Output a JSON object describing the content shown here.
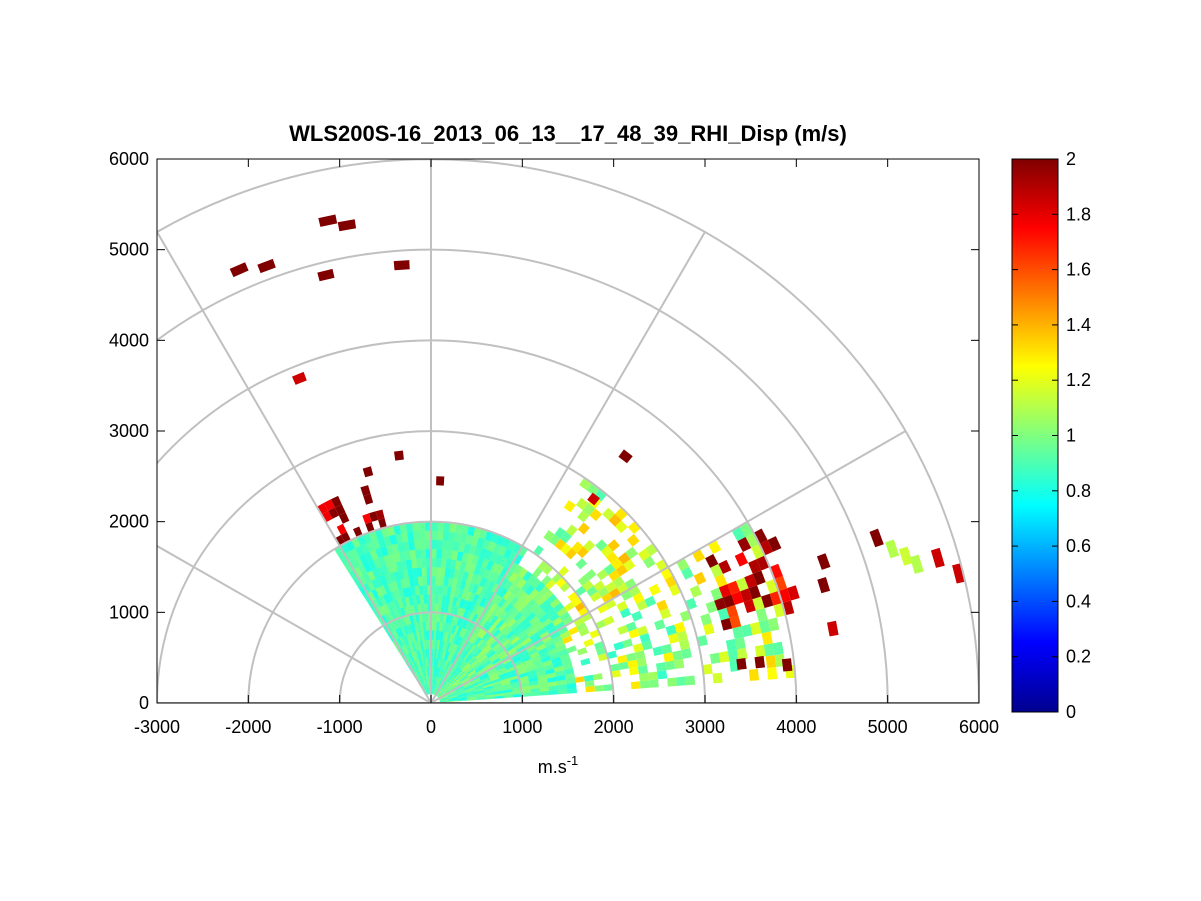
{
  "chart_data": {
    "type": "heatmap",
    "subtype": "polar-rhi-scan",
    "title": "WLS200S-16_2013_06_13__17_48_39_RHI_Disp (m/s)",
    "xlabel": {
      "base": "m.s",
      "superscript": "-1"
    },
    "ylabel": "",
    "xlim": [
      -3000,
      6000
    ],
    "ylim": [
      0,
      6000
    ],
    "x_ticks": [
      "-3000",
      "-2000",
      "-1000",
      "0",
      "1000",
      "2000",
      "3000",
      "4000",
      "5000",
      "6000"
    ],
    "y_ticks": [
      "0",
      "1000",
      "2000",
      "3000",
      "4000",
      "5000",
      "6000"
    ],
    "polar_grid": {
      "ring_ranges": [
        1000,
        2000,
        3000,
        4000,
        5000,
        6000
      ],
      "spoke_angles_deg": [
        0,
        30,
        60,
        90,
        120,
        150,
        180
      ],
      "color": "#c0c0c0"
    },
    "colorbar": {
      "colormap": "jet",
      "range": [
        0,
        2
      ],
      "ticks": [
        "0",
        "0.2",
        "0.4",
        "0.6",
        "0.8",
        "1",
        "1.2",
        "1.4",
        "1.6",
        "1.8",
        "2"
      ]
    },
    "scan": {
      "sector_elevation_deg": [
        4,
        122
      ],
      "range_step_m": 100,
      "dense_regions": [
        {
          "elev_deg": [
            58,
            122
          ],
          "range_m": [
            100,
            2000
          ],
          "mean": 0.9,
          "spread": 0.1
        },
        {
          "elev_deg": [
            30,
            58
          ],
          "range_m": [
            100,
            1800
          ],
          "mean": 0.95,
          "spread": 0.12
        },
        {
          "elev_deg": [
            4,
            30
          ],
          "range_m": [
            100,
            1600
          ],
          "mean": 0.92,
          "spread": 0.12
        }
      ],
      "outer_returns": [
        {
          "elev_deg": [
            104,
            122
          ],
          "range_m": [
            2000,
            2500
          ],
          "value": 2.0
        },
        {
          "elev_deg": [
            30,
            55
          ],
          "range_m": [
            1800,
            3000
          ],
          "value": 1.15
        },
        {
          "elev_deg": [
            4,
            30
          ],
          "range_m": [
            1600,
            4000
          ],
          "value": 1.1
        },
        {
          "elev_deg": [
            14,
            28
          ],
          "range_m": [
            3300,
            4200
          ],
          "value": 1.85
        }
      ],
      "isolated_points": [
        [
          -2100,
          4780,
          2.0
        ],
        [
          -1800,
          4820,
          2.0
        ],
        [
          -1130,
          5320,
          2.0
        ],
        [
          -920,
          5270,
          2.0
        ],
        [
          -1150,
          4720,
          2.0
        ],
        [
          -320,
          4830,
          2.0
        ],
        [
          -1440,
          3580,
          1.85
        ],
        [
          -690,
          2550,
          2.0
        ],
        [
          -350,
          2730,
          2.0
        ],
        [
          100,
          2450,
          2.0
        ],
        [
          2130,
          2720,
          2.0
        ],
        [
          1780,
          2250,
          1.85
        ],
        [
          4300,
          1560,
          2.0
        ],
        [
          4300,
          1300,
          2.0
        ],
        [
          4400,
          820,
          1.85
        ],
        [
          4880,
          1820,
          2.0
        ],
        [
          5050,
          1700,
          1.1
        ],
        [
          5200,
          1620,
          1.15
        ],
        [
          5320,
          1530,
          1.1
        ],
        [
          5550,
          1600,
          1.85
        ],
        [
          5780,
          1430,
          1.85
        ],
        [
          3600,
          450,
          2.0
        ],
        [
          3900,
          420,
          2.0
        ],
        [
          3400,
          430,
          2.0
        ]
      ]
    }
  }
}
